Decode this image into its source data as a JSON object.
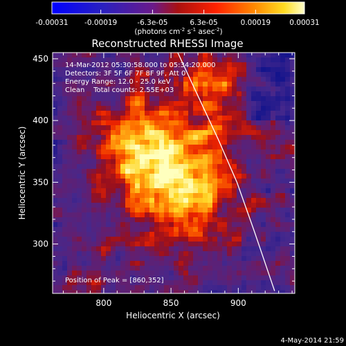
{
  "chart_data": {
    "type": "heatmap",
    "title": "Reconstructed RHESSI Image",
    "xlabel": "Heliocentric X (arcsec)",
    "ylabel": "Heliocentric Y (arcsec)",
    "xlim": [
      762,
      942
    ],
    "ylim": [
      260,
      455
    ],
    "x_ticks": [
      800,
      850,
      900
    ],
    "y_ticks": [
      300,
      350,
      400,
      450
    ],
    "info_lines": [
      "14-Mar-2012 05:30:58.000 to 05:34:20.000",
      "Detectors: 3F 5F 6F 7F 8F 9F, Att 0",
      "Energy Range: 12.0 - 25.0 keV",
      "Clean    Total counts: 2.55E+03"
    ],
    "peak_label": "Position of Peak = [860,352]",
    "peak": [
      860,
      352
    ],
    "colorbar": {
      "ticks": [
        "-0.00031",
        "-0.00019",
        "-6.3e-05",
        "6.3e-05",
        "0.00019",
        "0.00031"
      ],
      "tick_values": [
        -0.00031,
        -0.00019,
        -6.3e-05,
        6.3e-05,
        0.00019,
        0.00031
      ],
      "range": [
        -0.00031,
        0.00031
      ],
      "unit_label": "(photons cm",
      "unit_exp1": "-2",
      "unit_mid": " s",
      "unit_exp2": "-1",
      "unit_tail": " asec",
      "unit_exp3": "-2",
      "unit_close": ")"
    },
    "limb_points": [
      [
        855,
        455
      ],
      [
        870,
        420
      ],
      [
        885,
        385
      ],
      [
        899,
        350
      ],
      [
        912,
        310
      ],
      [
        927,
        262
      ]
    ],
    "timestamp": "4-May-2014 21:59"
  },
  "colors": {
    "background": "#000000",
    "limb": "#ffffff",
    "negative": "#2a2aa0",
    "background_noise": "#4a2a6a",
    "hot": "#ffff80"
  }
}
